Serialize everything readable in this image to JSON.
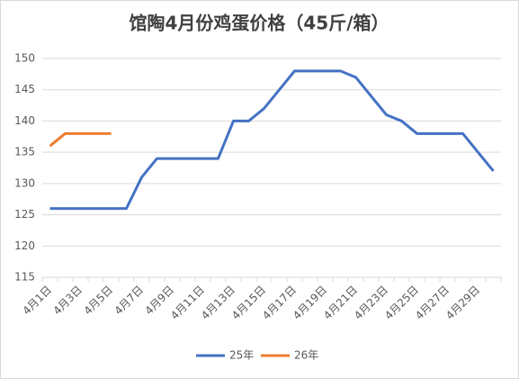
{
  "chart_data": {
    "type": "line",
    "title": "馆陶4月份鸡蛋价格（45斤/箱）",
    "categories": [
      "4月1日",
      null,
      "4月3日",
      null,
      "4月5日",
      null,
      "4月7日",
      null,
      "4月9日",
      null,
      "4月11日",
      null,
      "4月13日",
      null,
      "4月15日",
      null,
      "4月17日",
      null,
      "4月19日",
      null,
      "4月21日",
      null,
      "4月23日",
      null,
      "4月25日",
      null,
      "4月27日",
      null,
      "4月29日",
      null
    ],
    "series": [
      {
        "name": "25年",
        "color": "#4472c4",
        "values": [
          126,
          126,
          126,
          126,
          126,
          126,
          131,
          134,
          134,
          134,
          134,
          134,
          140,
          140,
          142,
          145,
          148,
          148,
          148,
          148,
          147,
          144,
          141,
          140,
          138,
          138,
          138,
          138,
          135,
          132
        ]
      },
      {
        "name": "26年",
        "color": "#ed7d31",
        "values": [
          136,
          138,
          138,
          138,
          138,
          null,
          null,
          null,
          null,
          null,
          null,
          null,
          null,
          null,
          null,
          null,
          null,
          null,
          null,
          null,
          null,
          null,
          null,
          null,
          null,
          null,
          null,
          null,
          null,
          null
        ]
      }
    ],
    "ylim": [
      115,
      150
    ],
    "yticks": [
      115,
      120,
      125,
      130,
      135,
      140,
      145,
      150
    ],
    "grid": true,
    "legend": "bottom"
  }
}
